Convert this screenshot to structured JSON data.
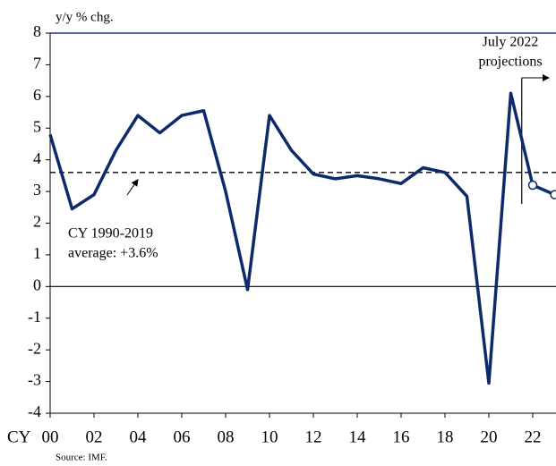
{
  "chart_data": {
    "type": "line",
    "y_axis_label": "y/y % chg.",
    "x_prefix": "CY",
    "x": [
      2000,
      2001,
      2002,
      2003,
      2004,
      2005,
      2006,
      2007,
      2008,
      2009,
      2010,
      2011,
      2012,
      2013,
      2014,
      2015,
      2016,
      2017,
      2018,
      2019,
      2020,
      2021,
      2022,
      2023
    ],
    "series": [
      {
        "color": "#0d2a6b",
        "values": [
          4.8,
          2.45,
          2.9,
          4.3,
          5.4,
          4.85,
          5.4,
          5.55,
          3.0,
          -0.1,
          5.4,
          4.3,
          3.55,
          3.4,
          3.5,
          3.4,
          3.25,
          3.75,
          3.6,
          2.85,
          -3.05,
          6.1,
          3.2,
          2.9
        ]
      }
    ],
    "projected_x": [
      2022,
      2023
    ],
    "average_line": 3.6,
    "average_annotation": [
      "CY 1990-2019",
      "average: +3.6%"
    ],
    "projection_annotation": [
      "July 2022",
      "projections"
    ],
    "projection_start_x": 2021.5,
    "xlim": [
      2000,
      2023
    ],
    "xticks": [
      {
        "value": 2000,
        "label": "00"
      },
      {
        "value": 2002,
        "label": "02"
      },
      {
        "value": 2004,
        "label": "04"
      },
      {
        "value": 2006,
        "label": "06"
      },
      {
        "value": 2008,
        "label": "08"
      },
      {
        "value": 2010,
        "label": "10"
      },
      {
        "value": 2012,
        "label": "12"
      },
      {
        "value": 2014,
        "label": "14"
      },
      {
        "value": 2016,
        "label": "16"
      },
      {
        "value": 2018,
        "label": "18"
      },
      {
        "value": 2020,
        "label": "20"
      },
      {
        "value": 2022,
        "label": "22"
      }
    ],
    "ylim": [
      -4,
      8
    ],
    "yticks": [
      -4,
      -3,
      -2,
      -1,
      0,
      1,
      2,
      3,
      4,
      5,
      6,
      7,
      8
    ],
    "source": "Source: IMF."
  }
}
